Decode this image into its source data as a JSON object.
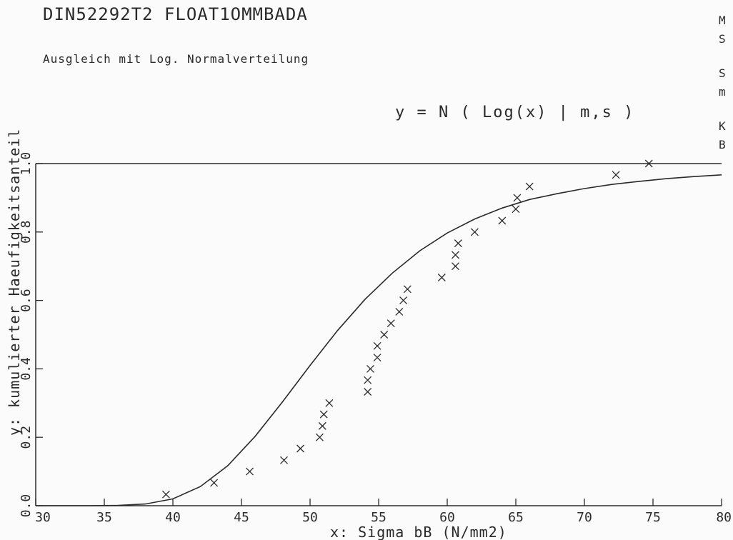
{
  "chart_data": {
    "type": "scatter",
    "title": "DIN52292T2   FLOAT1OMMBADA",
    "subtitle": "Ausgleich mit Log. Normalverteilung",
    "formula": "y = N ( Log(x) | m,s )",
    "xlabel": "x:   Sigma bB (N/mm2)",
    "ylabel": "y:  kumulierter Haeufigkeitsanteil",
    "xlim": [
      30,
      80
    ],
    "ylim": [
      0.0,
      1.0
    ],
    "x_ticks": [
      {
        "value": 30,
        "label": "30"
      },
      {
        "value": 35,
        "label": "35"
      },
      {
        "value": 40,
        "label": "40"
      },
      {
        "value": 45,
        "label": "45"
      },
      {
        "value": 50,
        "label": "50"
      },
      {
        "value": 55,
        "label": "55"
      },
      {
        "value": 60,
        "label": "60"
      },
      {
        "value": 65,
        "label": "65"
      },
      {
        "value": 70,
        "label": "70"
      },
      {
        "value": 75,
        "label": "75"
      },
      {
        "value": 80,
        "label": "80"
      }
    ],
    "y_ticks": [
      {
        "value": 0.0,
        "label": "0.0"
      },
      {
        "value": 0.2,
        "label": "0.2"
      },
      {
        "value": 0.4,
        "label": "0.4"
      },
      {
        "value": 0.6,
        "label": "0.6"
      },
      {
        "value": 0.8,
        "label": "0.8"
      },
      {
        "value": 1.0,
        "label": "1.0"
      }
    ],
    "side_labels": [
      "M",
      "S",
      "S",
      "m",
      "K",
      "B"
    ],
    "series": [
      {
        "type": "scatter",
        "points": [
          [
            39.5,
            0.033
          ],
          [
            43.0,
            0.067
          ],
          [
            45.6,
            0.1
          ],
          [
            48.1,
            0.133
          ],
          [
            49.3,
            0.167
          ],
          [
            50.7,
            0.2
          ],
          [
            50.9,
            0.233
          ],
          [
            51.0,
            0.267
          ],
          [
            51.4,
            0.3
          ],
          [
            54.2,
            0.333
          ],
          [
            54.2,
            0.367
          ],
          [
            54.4,
            0.4
          ],
          [
            54.9,
            0.433
          ],
          [
            54.9,
            0.467
          ],
          [
            55.4,
            0.5
          ],
          [
            55.9,
            0.533
          ],
          [
            56.5,
            0.567
          ],
          [
            56.8,
            0.6
          ],
          [
            57.1,
            0.633
          ],
          [
            59.6,
            0.667
          ],
          [
            60.6,
            0.7
          ],
          [
            60.6,
            0.733
          ],
          [
            60.8,
            0.767
          ],
          [
            62.0,
            0.8
          ],
          [
            64.0,
            0.833
          ],
          [
            65.0,
            0.867
          ],
          [
            65.1,
            0.9
          ],
          [
            66.0,
            0.933
          ],
          [
            72.3,
            0.967
          ],
          [
            74.7,
            1.0
          ]
        ]
      },
      {
        "type": "line",
        "points": [
          [
            30,
            0.0
          ],
          [
            34,
            0.0001
          ],
          [
            36,
            0.0008
          ],
          [
            38,
            0.005
          ],
          [
            40,
            0.02
          ],
          [
            42,
            0.056
          ],
          [
            44,
            0.117
          ],
          [
            46,
            0.203
          ],
          [
            48,
            0.304
          ],
          [
            50,
            0.41
          ],
          [
            52,
            0.512
          ],
          [
            54,
            0.603
          ],
          [
            56,
            0.68
          ],
          [
            58,
            0.745
          ],
          [
            60,
            0.797
          ],
          [
            62,
            0.838
          ],
          [
            64,
            0.87
          ],
          [
            66,
            0.895
          ],
          [
            68,
            0.912
          ],
          [
            70,
            0.927
          ],
          [
            72,
            0.939
          ],
          [
            74,
            0.948
          ],
          [
            76,
            0.956
          ],
          [
            78,
            0.962
          ],
          [
            80,
            0.967
          ]
        ]
      }
    ]
  }
}
